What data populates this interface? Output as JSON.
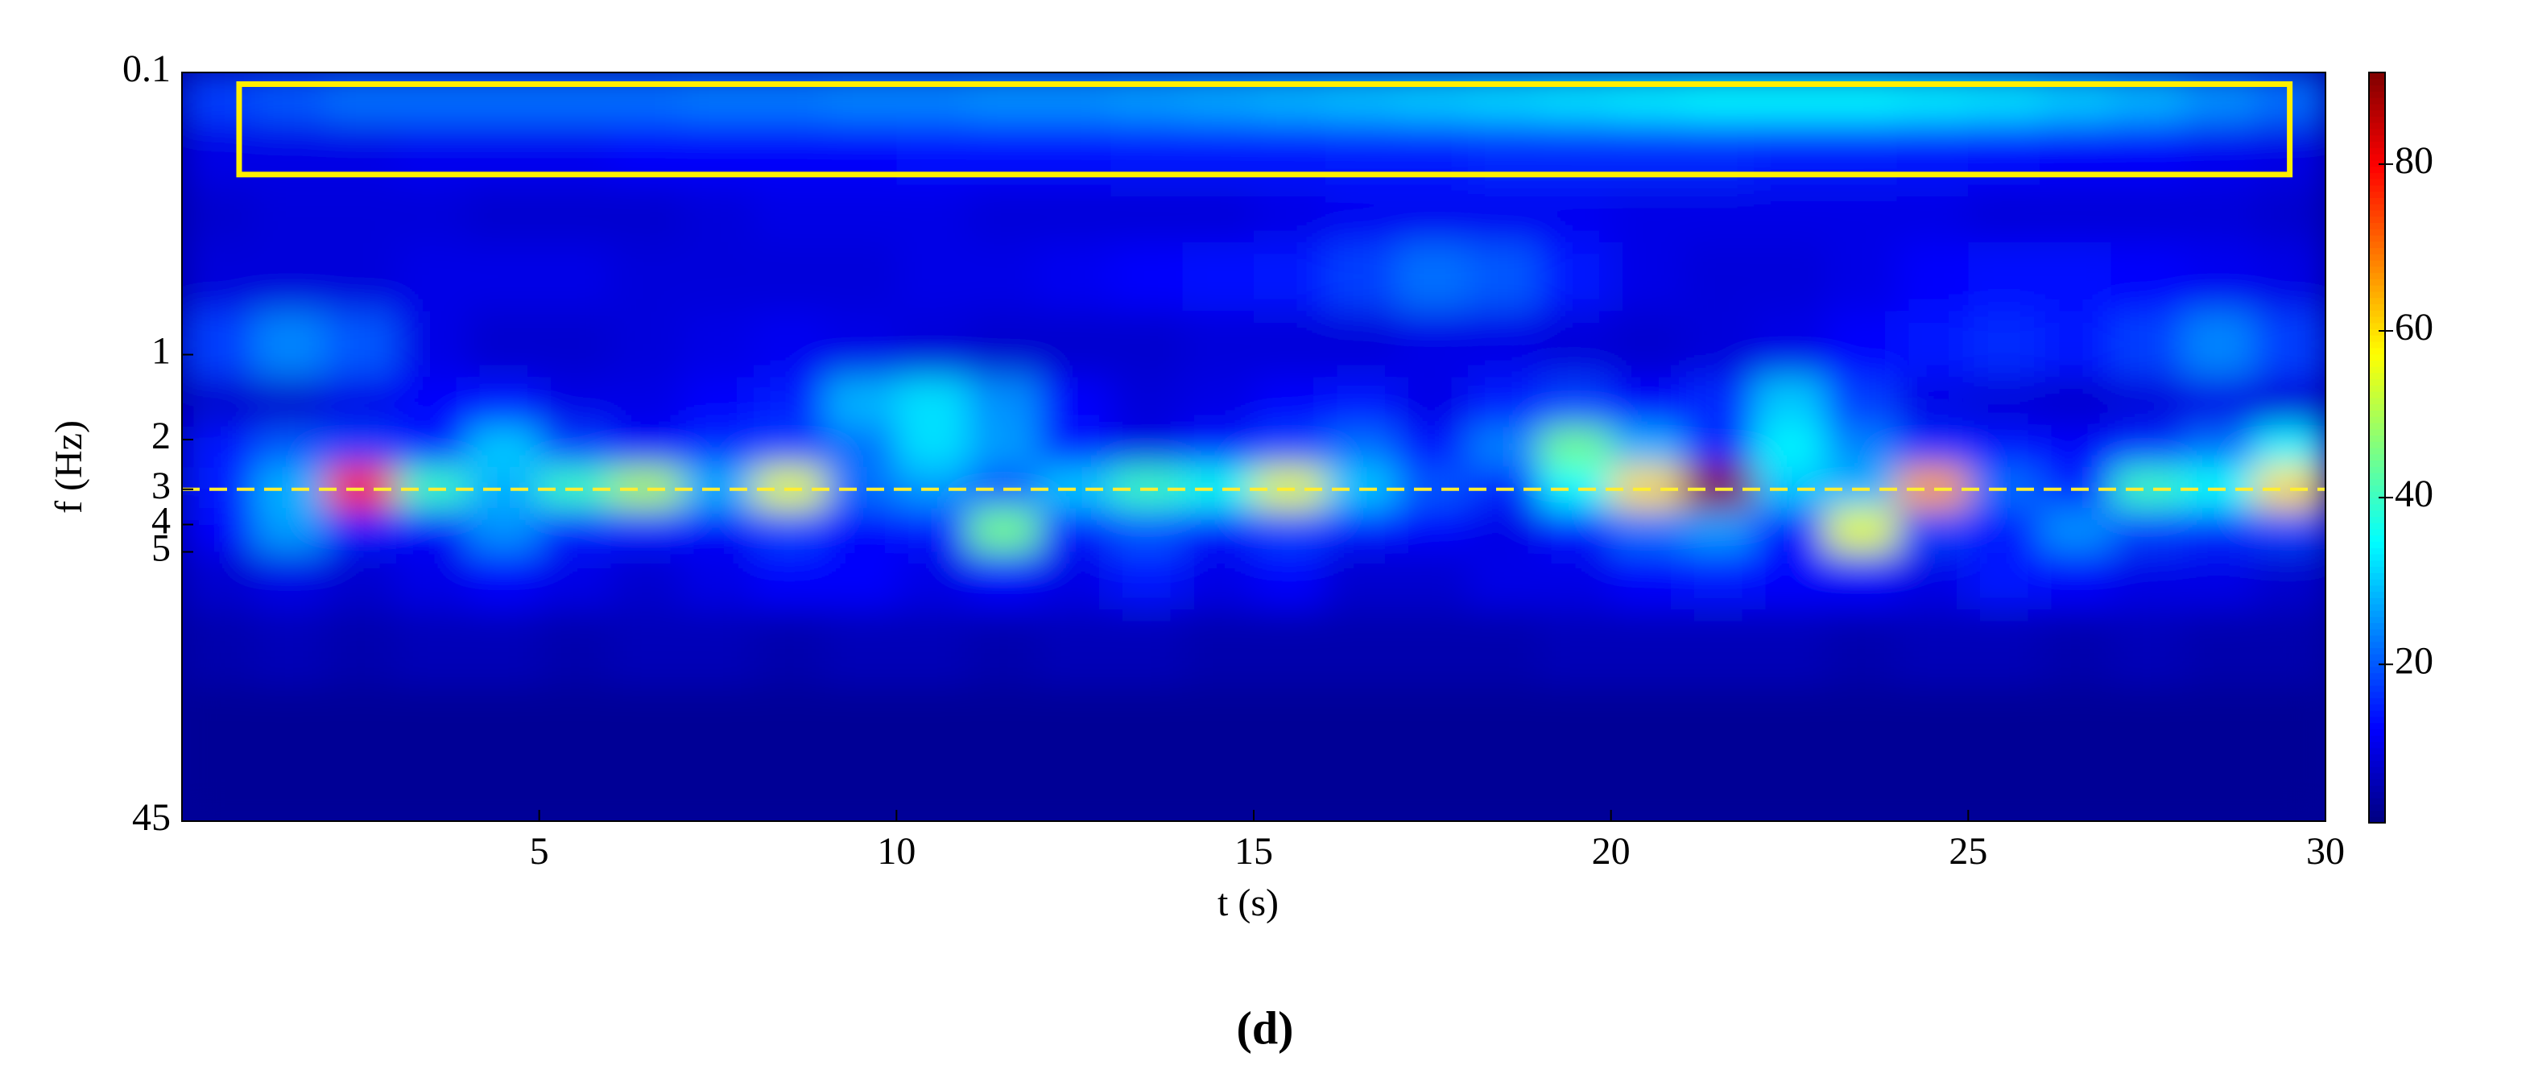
{
  "chart_data": {
    "type": "heatmap",
    "caption": "(d)",
    "xlabel": "t (s)",
    "ylabel": "f (Hz)",
    "colormap": "jet",
    "xlim": [
      0,
      30
    ],
    "xticks": [
      5,
      10,
      15,
      20,
      25,
      30
    ],
    "ylim": [
      0.1,
      45
    ],
    "yscale": "log",
    "yreversed": true,
    "yticks": [
      0.1,
      1,
      2,
      3,
      4,
      5,
      45
    ],
    "clim": [
      1,
      91
    ],
    "cticks": [
      20,
      40,
      60,
      80
    ],
    "x_bins": [
      0,
      1,
      2,
      3,
      4,
      5,
      6,
      7,
      8,
      9,
      10,
      11,
      12,
      13,
      14,
      15,
      16,
      17,
      18,
      19,
      20,
      21,
      22,
      23,
      24,
      25,
      26,
      27,
      28,
      29,
      30
    ],
    "y_bins": [
      0.1,
      0.15,
      0.25,
      0.4,
      0.7,
      1.2,
      1.8,
      2.5,
      3.5,
      5,
      8,
      15,
      45
    ],
    "z": [
      [
        18,
        20,
        22,
        22,
        22,
        22,
        22,
        23,
        23,
        24,
        24,
        25,
        25,
        26,
        27,
        28,
        29,
        30,
        31,
        32,
        33,
        34,
        34,
        34,
        33,
        32,
        30,
        28,
        25,
        22
      ],
      [
        10,
        10,
        10,
        11,
        11,
        11,
        12,
        12,
        12,
        12,
        13,
        13,
        13,
        14,
        14,
        14,
        15,
        15,
        16,
        16,
        16,
        16,
        15,
        15,
        14,
        13,
        12,
        12,
        11,
        10
      ],
      [
        8,
        9,
        9,
        9,
        8,
        8,
        8,
        9,
        10,
        10,
        10,
        9,
        9,
        9,
        9,
        10,
        11,
        11,
        11,
        11,
        10,
        10,
        10,
        10,
        10,
        9,
        9,
        9,
        9,
        8
      ],
      [
        9,
        9,
        9,
        10,
        10,
        10,
        9,
        9,
        9,
        9,
        10,
        10,
        11,
        12,
        13,
        14,
        18,
        22,
        20,
        14,
        10,
        9,
        9,
        10,
        12,
        13,
        13,
        12,
        11,
        10
      ],
      [
        18,
        24,
        20,
        10,
        8,
        8,
        9,
        10,
        11,
        10,
        9,
        8,
        8,
        8,
        9,
        9,
        9,
        10,
        10,
        9,
        8,
        9,
        10,
        12,
        14,
        16,
        14,
        18,
        24,
        18
      ],
      [
        8,
        8,
        10,
        12,
        14,
        10,
        10,
        12,
        15,
        28,
        32,
        25,
        12,
        9,
        10,
        12,
        14,
        10,
        15,
        18,
        12,
        16,
        30,
        18,
        10,
        9,
        8,
        9,
        10,
        9
      ],
      [
        14,
        20,
        18,
        15,
        30,
        18,
        12,
        16,
        18,
        22,
        32,
        26,
        14,
        10,
        14,
        18,
        22,
        14,
        24,
        45,
        28,
        16,
        34,
        24,
        16,
        14,
        12,
        16,
        22,
        34
      ],
      [
        15,
        28,
        75,
        40,
        28,
        40,
        50,
        28,
        55,
        22,
        26,
        20,
        30,
        40,
        36,
        55,
        30,
        20,
        16,
        35,
        60,
        90,
        30,
        28,
        65,
        22,
        16,
        40,
        35,
        60
      ],
      [
        12,
        26,
        15,
        12,
        25,
        15,
        14,
        12,
        18,
        12,
        14,
        45,
        15,
        20,
        14,
        18,
        14,
        12,
        10,
        14,
        22,
        26,
        14,
        55,
        18,
        14,
        25,
        18,
        16,
        18
      ],
      [
        8,
        10,
        8,
        10,
        12,
        10,
        8,
        10,
        12,
        12,
        10,
        12,
        10,
        14,
        10,
        12,
        8,
        8,
        10,
        10,
        12,
        14,
        12,
        12,
        10,
        14,
        12,
        10,
        10,
        8
      ],
      [
        5,
        6,
        5,
        6,
        6,
        5,
        6,
        6,
        5,
        6,
        6,
        5,
        6,
        6,
        5,
        5,
        5,
        5,
        5,
        6,
        6,
        6,
        6,
        5,
        6,
        6,
        5,
        6,
        5,
        5
      ],
      [
        3,
        3,
        3,
        3,
        3,
        3,
        3,
        3,
        3,
        3,
        3,
        3,
        3,
        3,
        3,
        3,
        3,
        3,
        3,
        3,
        3,
        3,
        3,
        3,
        3,
        3,
        3,
        3,
        3,
        3
      ]
    ],
    "reference_line": {
      "y": 3,
      "color": "#ffee33"
    },
    "highlight_box": {
      "x": [
        0.8,
        29.5
      ],
      "y": [
        0.11,
        0.23
      ],
      "color": "#ffee00"
    }
  }
}
